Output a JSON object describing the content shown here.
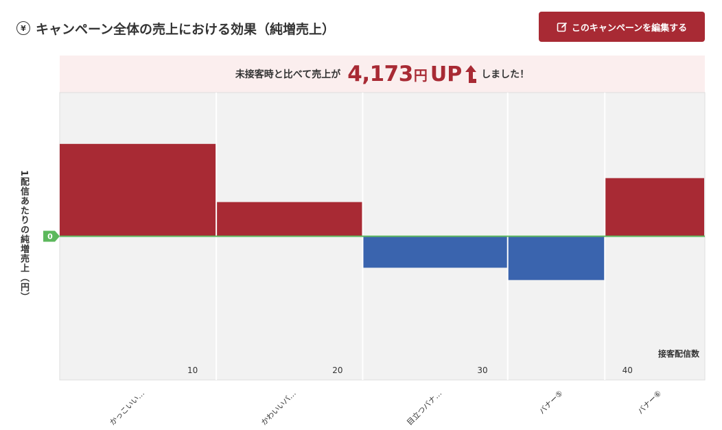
{
  "header": {
    "icon": "yen-circle-icon",
    "icon_glyph": "¥",
    "title": "キャンペーン全体の売上における効果（純増売上）"
  },
  "edit_button": {
    "label": "このキャンペーンを編集する",
    "icon": "edit-icon"
  },
  "banner": {
    "prefix": "未接客時と比べて売上が",
    "amount": "4,173",
    "unit": "円",
    "up_text": "UP",
    "arrow_icon": "up-arrow-icon",
    "suffix": "しました！"
  },
  "colors": {
    "accent": "#a82a34",
    "positive": "#a82a34",
    "negative": "#3a64ae",
    "zero_line": "#5cb85c",
    "plot_bg": "#f2f2f2",
    "banner_bg": "#fbeeee"
  },
  "chart_data": {
    "type": "bar",
    "variable_width": true,
    "categories": [
      "かっこいい…",
      "かわいいバ…",
      "目立つバナ…",
      "バナー⑤",
      "バナー⑥"
    ],
    "x_edges": [
      0,
      10.8,
      20.9,
      30.9,
      37.6,
      44.5
    ],
    "values": [
      135,
      50,
      -46,
      -64,
      85
    ],
    "x_ticks": [
      10,
      20,
      30,
      40
    ],
    "xlabel": "接客配信数",
    "ylabel": "1配信あたりの純増売上（円）",
    "zero_label": "0",
    "ylim": [
      -210,
      210
    ],
    "grid": true
  }
}
